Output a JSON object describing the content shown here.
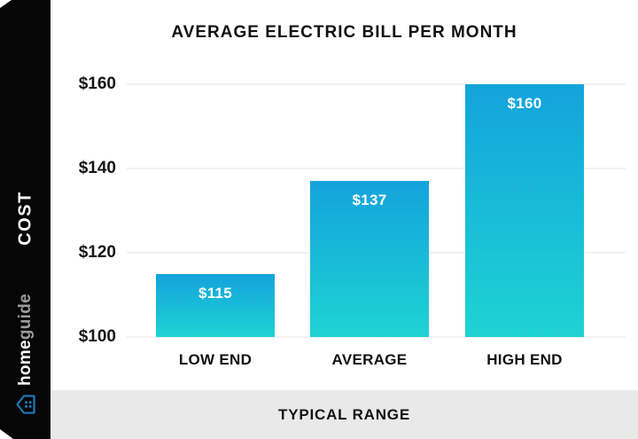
{
  "header": {
    "title": "AVERAGE ELECTRIC BILL PER MONTH"
  },
  "sidebar": {
    "cost_label": "COST",
    "brand_home": "home",
    "brand_guide": "guide"
  },
  "footer": {
    "label": "TYPICAL RANGE"
  },
  "chart_data": {
    "type": "bar",
    "title": "AVERAGE ELECTRIC BILL PER MONTH",
    "categories": [
      "LOW END",
      "AVERAGE",
      "HIGH END"
    ],
    "values": [
      115,
      137,
      160
    ],
    "value_labels": [
      "$115",
      "$137",
      "$160"
    ],
    "y_ticks": [
      "$160",
      "$140",
      "$120",
      "$100"
    ],
    "xlabel": "TYPICAL RANGE",
    "ylabel": "COST",
    "ylim": [
      100,
      160
    ],
    "grid": true,
    "legend": "none"
  },
  "colors": {
    "bar_gradient_top": "#14a3dc",
    "bar_gradient_bottom": "#1ed3d3",
    "sidebar_bg": "#060606",
    "footer_bg": "#e9e9e9",
    "gridline": "#f2f2f4",
    "brand_blue": "#1d7ab5"
  }
}
